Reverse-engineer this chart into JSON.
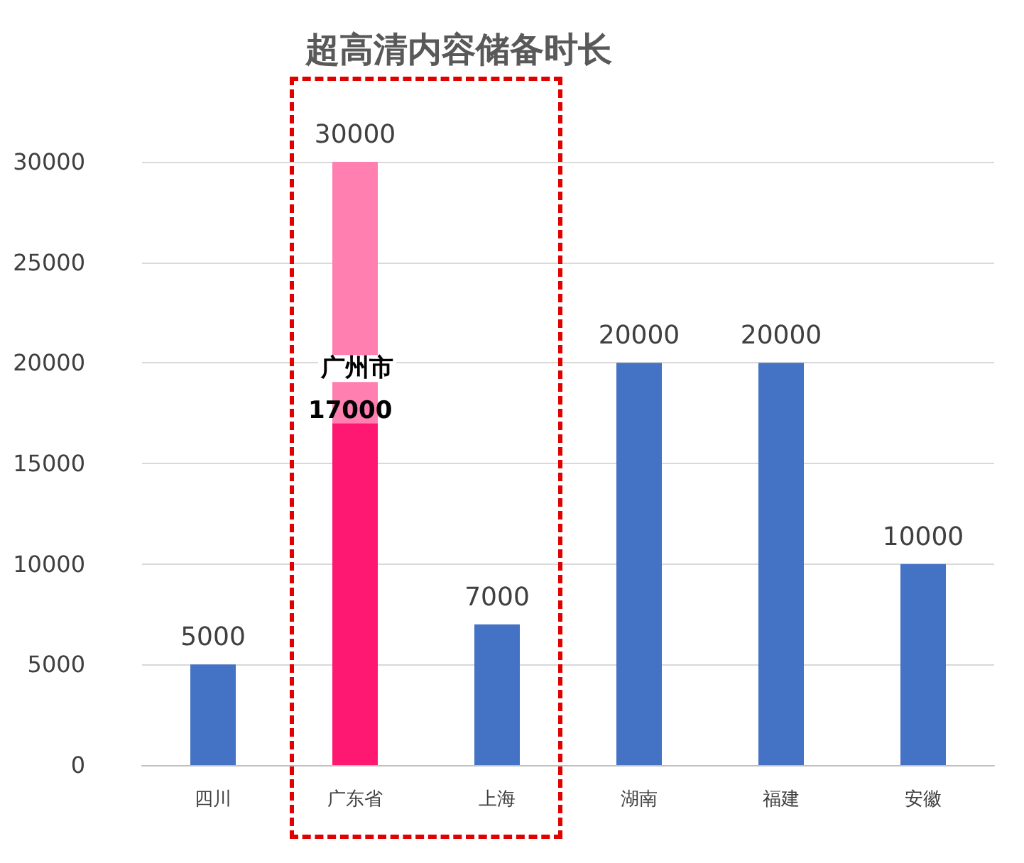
{
  "chart_data": {
    "type": "bar",
    "title": "超高清内容储备时长",
    "categories": [
      "四川",
      "广东省",
      "上海",
      "湖南",
      "福建",
      "安徽"
    ],
    "stacked": true,
    "series": [
      {
        "colors": [
          "#4472c4",
          "#ff1872",
          "#4472c4",
          "#4472c4",
          "#4472c4",
          "#4472c4"
        ],
        "values": [
          5000,
          17000,
          7000,
          20000,
          20000,
          10000
        ],
        "value_labels": [
          null,
          "17000",
          null,
          null,
          null,
          null
        ]
      },
      {
        "color": "#ff7fb0",
        "values": [
          null,
          13000,
          null,
          null,
          null,
          null
        ]
      }
    ],
    "totals": [
      "5000",
      "30000",
      "7000",
      "20000",
      "20000",
      "10000"
    ],
    "annotations": [
      {
        "text": "广州市",
        "x": "广东省",
        "y": 17000
      }
    ],
    "ylim": [
      0,
      30000
    ],
    "yticks": [
      0,
      5000,
      10000,
      15000,
      20000,
      25000,
      30000
    ],
    "grid": "y"
  }
}
